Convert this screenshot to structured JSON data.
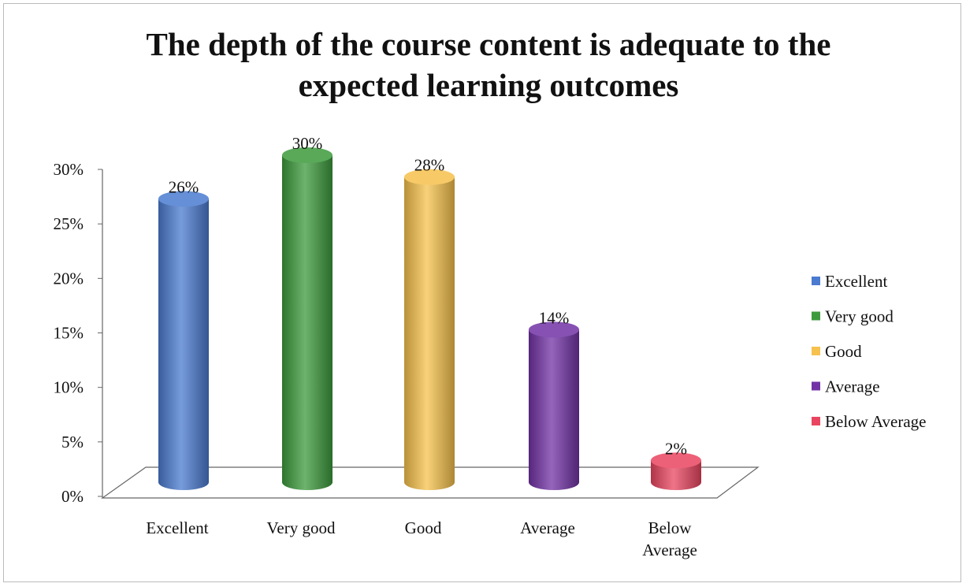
{
  "chart_data": {
    "type": "bar",
    "title": "The depth of the course content is adequate to the expected learning outcomes",
    "categories": [
      "Excellent",
      "Very good",
      "Good",
      "Average",
      "Below Average"
    ],
    "series": [
      {
        "name": "Excellent",
        "color": "#4a7bd0"
      },
      {
        "name": "Very good",
        "color": "#3c9a3c"
      },
      {
        "name": "Good",
        "color": "#f6c14c"
      },
      {
        "name": "Average",
        "color": "#7232a6"
      },
      {
        "name": "Below Average",
        "color": "#ea4560"
      }
    ],
    "values": [
      26,
      30,
      28,
      14,
      2
    ],
    "value_labels": [
      "26%",
      "30%",
      "28%",
      "14%",
      "2%"
    ],
    "ylim": [
      0,
      30
    ],
    "yticks": [
      {
        "value": 0,
        "label": "0%"
      },
      {
        "value": 5,
        "label": "5%"
      },
      {
        "value": 10,
        "label": "10%"
      },
      {
        "value": 15,
        "label": "15%"
      },
      {
        "value": 20,
        "label": "20%"
      },
      {
        "value": 25,
        "label": "25%"
      },
      {
        "value": 30,
        "label": "30%"
      }
    ],
    "grid": false,
    "legend": "right"
  }
}
